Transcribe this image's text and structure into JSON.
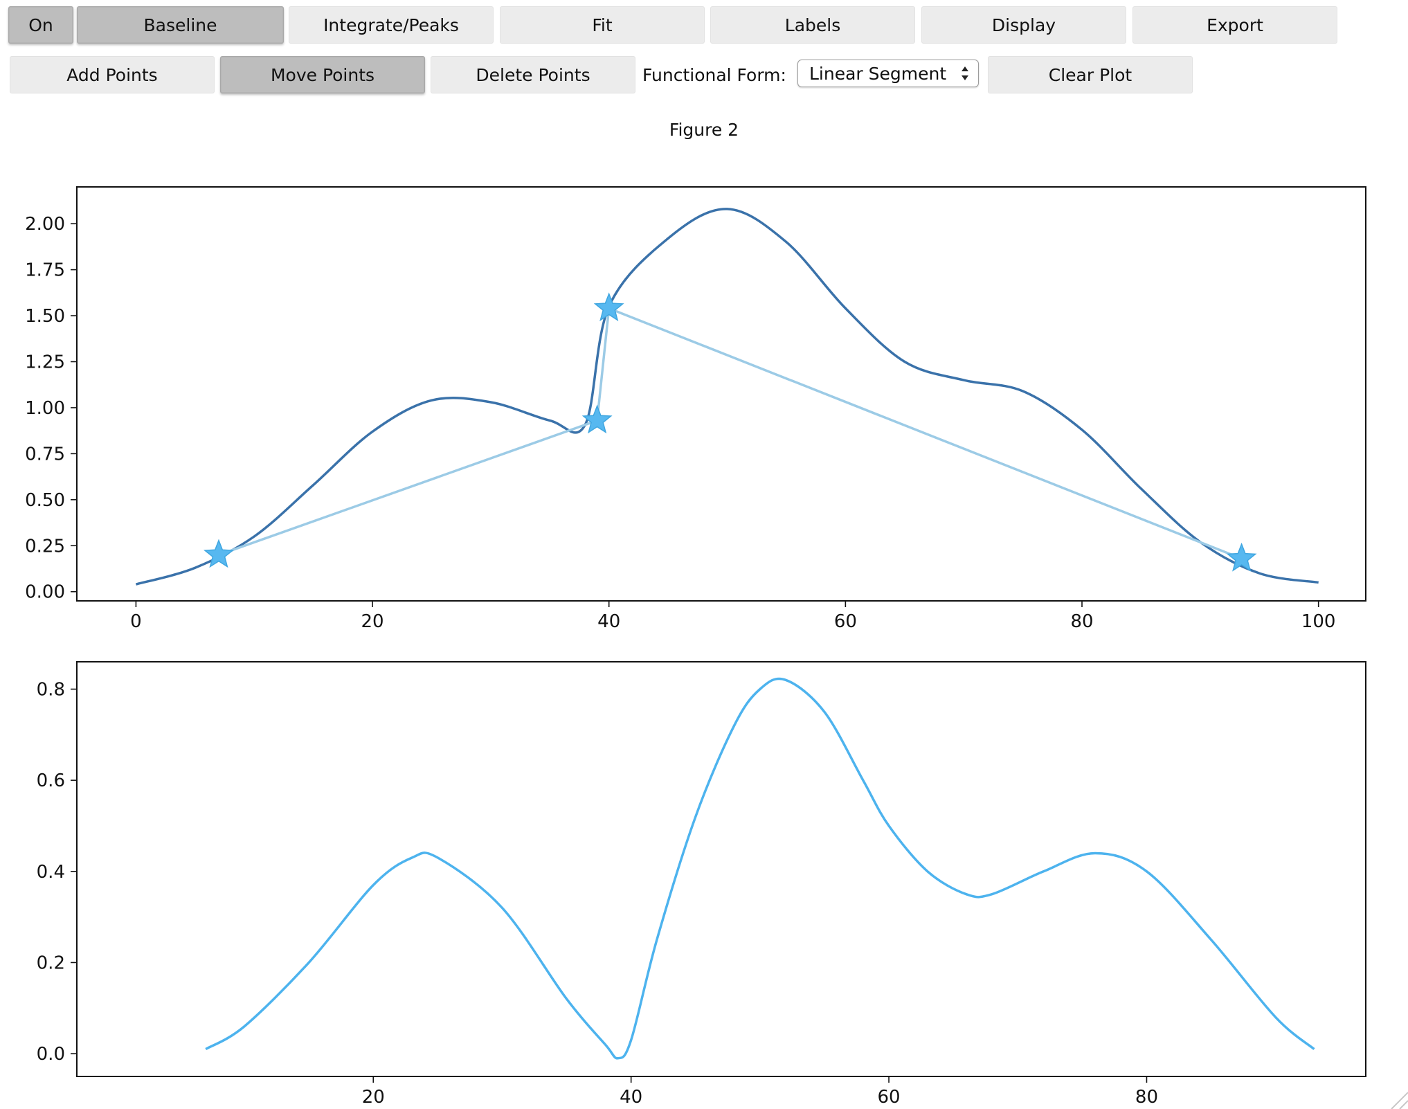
{
  "toolbar_row1": [
    {
      "key": "on",
      "label": "On",
      "active": true
    },
    {
      "key": "baseline",
      "label": "Baseline",
      "active": true
    },
    {
      "key": "integrate",
      "label": "Integrate/Peaks",
      "active": false
    },
    {
      "key": "fit",
      "label": "Fit",
      "active": false
    },
    {
      "key": "labels",
      "label": "Labels",
      "active": false
    },
    {
      "key": "display",
      "label": "Display",
      "active": false
    },
    {
      "key": "export",
      "label": "Export",
      "active": false
    }
  ],
  "toolbar_row2": [
    {
      "key": "add-points",
      "label": "Add Points",
      "active": false
    },
    {
      "key": "move-points",
      "label": "Move Points",
      "active": true
    },
    {
      "key": "delete-points",
      "label": "Delete Points",
      "active": false
    }
  ],
  "functional_form": {
    "label": "Functional Form:",
    "value": "Linear Segment"
  },
  "clear_plot_label": "Clear Plot",
  "figure_title": "Figure 2",
  "colors": {
    "signal": "#3a72aa",
    "baseline": "#9ccbe6",
    "points": "#57b8f0",
    "corrected": "#4db3ee"
  },
  "chart_data": [
    {
      "type": "line",
      "title": "",
      "xlim": [
        -5,
        104
      ],
      "ylim": [
        -0.05,
        2.2
      ],
      "xticks": [
        0,
        20,
        40,
        60,
        80,
        100
      ],
      "yticks": [
        0.0,
        0.25,
        0.5,
        0.75,
        1.0,
        1.25,
        1.5,
        1.75,
        2.0
      ],
      "ytick_labels": [
        "0.00",
        "0.25",
        "0.50",
        "0.75",
        "1.00",
        "1.25",
        "1.50",
        "1.75",
        "2.00"
      ],
      "grid": false,
      "series": [
        {
          "role": "signal",
          "x": [
            0,
            5,
            10,
            15,
            20,
            25,
            30,
            35,
            38,
            40,
            45,
            50,
            55,
            60,
            65,
            70,
            75,
            80,
            85,
            90,
            95,
            100
          ],
          "y": [
            0.04,
            0.13,
            0.3,
            0.58,
            0.87,
            1.04,
            1.03,
            0.93,
            0.91,
            1.55,
            1.92,
            2.08,
            1.9,
            1.54,
            1.25,
            1.15,
            1.09,
            0.88,
            0.56,
            0.27,
            0.1,
            0.05
          ]
        },
        {
          "role": "baseline",
          "marker": "star",
          "x": [
            7,
            39,
            40,
            93.5
          ],
          "y": [
            0.2,
            0.93,
            1.54,
            0.18
          ]
        }
      ]
    },
    {
      "type": "line",
      "title": "",
      "xlim": [
        -3,
        97
      ],
      "ylim": [
        -0.05,
        0.86
      ],
      "xticks": [
        20,
        40,
        60,
        80
      ],
      "yticks": [
        0.0,
        0.2,
        0.4,
        0.6,
        0.8
      ],
      "ytick_labels": [
        "0.0",
        "0.2",
        "0.4",
        "0.6",
        "0.8"
      ],
      "grid": false,
      "series": [
        {
          "role": "corrected",
          "x": [
            7,
            10,
            15,
            20,
            23,
            25,
            30,
            35,
            38,
            39,
            40,
            42,
            45,
            48,
            50,
            52,
            55,
            58,
            60,
            63,
            66,
            68,
            72,
            76,
            80,
            85,
            90,
            93
          ],
          "y": [
            0.01,
            0.06,
            0.2,
            0.37,
            0.43,
            0.43,
            0.32,
            0.12,
            0.02,
            -0.01,
            0.03,
            0.25,
            0.52,
            0.72,
            0.8,
            0.82,
            0.75,
            0.6,
            0.5,
            0.4,
            0.35,
            0.35,
            0.4,
            0.44,
            0.4,
            0.25,
            0.08,
            0.01
          ]
        }
      ]
    }
  ]
}
